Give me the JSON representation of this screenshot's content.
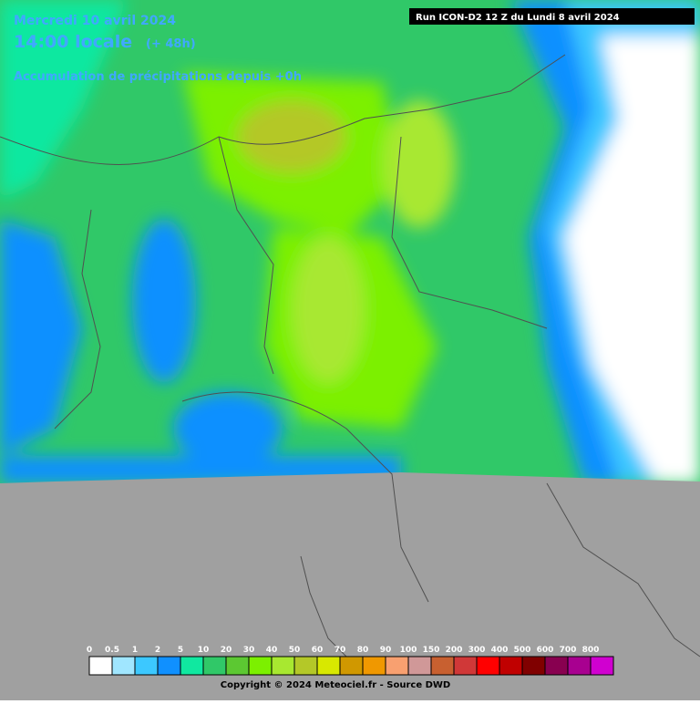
{
  "header": {
    "date": "Mercredi 10 avril 2024",
    "time": "14:00 locale",
    "lead": "(+ 48h)",
    "subtitle": "Accumulation de précipitations depuis +0h",
    "run": "Run ICON-D2 12 Z du Lundi 8 avril 2024"
  },
  "legend": {
    "labels": [
      0,
      0.5,
      1,
      2,
      5,
      10,
      20,
      30,
      40,
      50,
      60,
      70,
      80,
      90,
      100,
      150,
      200,
      300,
      400,
      500,
      600,
      700,
      800
    ],
    "colors": [
      "#ffffff",
      "#a0e6ff",
      "#3cc8ff",
      "#1090ff",
      "#10e8a0",
      "#30c868",
      "#5cc832",
      "#7cf000",
      "#a8e830",
      "#b4c828",
      "#d8e800",
      "#d09800",
      "#f09800",
      "#f8a070",
      "#d09898",
      "#c86030",
      "#d03838",
      "#ff0000",
      "#c00000",
      "#800000",
      "#880050",
      "#a80090",
      "#d000d0"
    ]
  },
  "footer": {
    "copyright": "Copyright © 2024 Meteociel.fr - Source DWD"
  }
}
